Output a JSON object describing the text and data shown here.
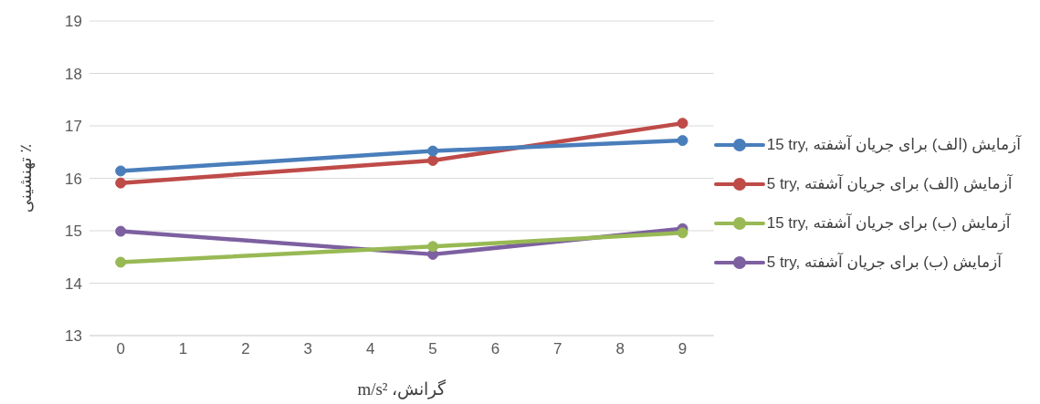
{
  "chart_data": {
    "type": "line",
    "xlabel": "گرانش، m/s²",
    "ylabel": "تهنشینی ٪",
    "x": [
      0,
      5,
      9
    ],
    "series": [
      {
        "name": "15 try, آزمایش (الف) برای جریان آشفته",
        "color": "#4a7ebb",
        "values": [
          16.14,
          16.52,
          16.72
        ]
      },
      {
        "name": "5 try, آزمایش (الف) برای جریان آشفته",
        "color": "#be4b48",
        "values": [
          15.91,
          16.34,
          17.05
        ]
      },
      {
        "name": "15 try, آزمایش (ب) برای جریان آشفته",
        "color": "#98b954",
        "values": [
          14.4,
          14.7,
          14.96
        ]
      },
      {
        "name": "5 try, آزمایش (ب) برای جریان آشفته",
        "color": "#7d60a0",
        "values": [
          14.99,
          14.55,
          15.04
        ]
      }
    ],
    "xlim": [
      -0.5,
      9.5
    ],
    "xticks": [
      0,
      1,
      2,
      3,
      4,
      5,
      6,
      7,
      8,
      9
    ],
    "ylim": [
      13,
      19
    ],
    "yticks": [
      13,
      14,
      15,
      16,
      17,
      18,
      19
    ],
    "grid": "y",
    "legend": "right",
    "marker": "circle",
    "line_style": "solid"
  }
}
